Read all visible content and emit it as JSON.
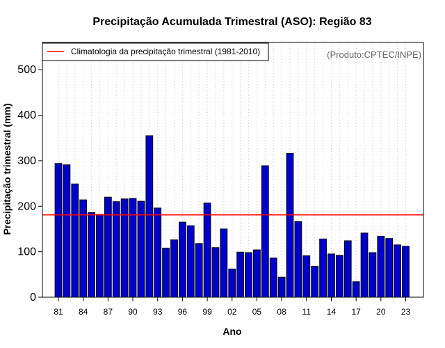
{
  "chart_data": {
    "type": "bar",
    "title": "Precipitação Acumulada Trimestral (ASO): Região 83",
    "xlabel": "Ano",
    "ylabel": "Precipitação trimestral (mm)",
    "ylim": [
      0,
      560
    ],
    "yticks": [
      0,
      100,
      200,
      300,
      400,
      500
    ],
    "xtick_labels": [
      "81",
      "84",
      "87",
      "90",
      "93",
      "96",
      "99",
      "02",
      "05",
      "08",
      "11",
      "14",
      "17",
      "20",
      "23"
    ],
    "grid": "vertical-dotted",
    "years": [
      1981,
      1982,
      1983,
      1984,
      1985,
      1986,
      1987,
      1988,
      1989,
      1990,
      1991,
      1992,
      1993,
      1994,
      1995,
      1996,
      1997,
      1998,
      1999,
      2000,
      2001,
      2002,
      2003,
      2004,
      2005,
      2006,
      2007,
      2008,
      2009,
      2010,
      2011,
      2012,
      2013,
      2014,
      2015,
      2016,
      2017,
      2018,
      2019,
      2020,
      2021,
      2022,
      2023
    ],
    "values": [
      294,
      291,
      249,
      214,
      186,
      182,
      220,
      210,
      216,
      217,
      211,
      355,
      196,
      108,
      126,
      165,
      157,
      118,
      207,
      109,
      150,
      62,
      99,
      98,
      104,
      289,
      86,
      44,
      316,
      166,
      91,
      68,
      128,
      95,
      92,
      124,
      34,
      141,
      98,
      134,
      129,
      115,
      112
    ],
    "climatology": 181,
    "legend": {
      "label": "Climatologia da precipitação trimestral (1981-2010)",
      "position": "top-left"
    },
    "credit": "(Produto:CPTEC/INPE)",
    "colors": {
      "bar": "#0000CD",
      "bar_edge": "#000000",
      "climatology": "#FF0000",
      "grid": "#cccccc",
      "credit": "#666666"
    }
  }
}
